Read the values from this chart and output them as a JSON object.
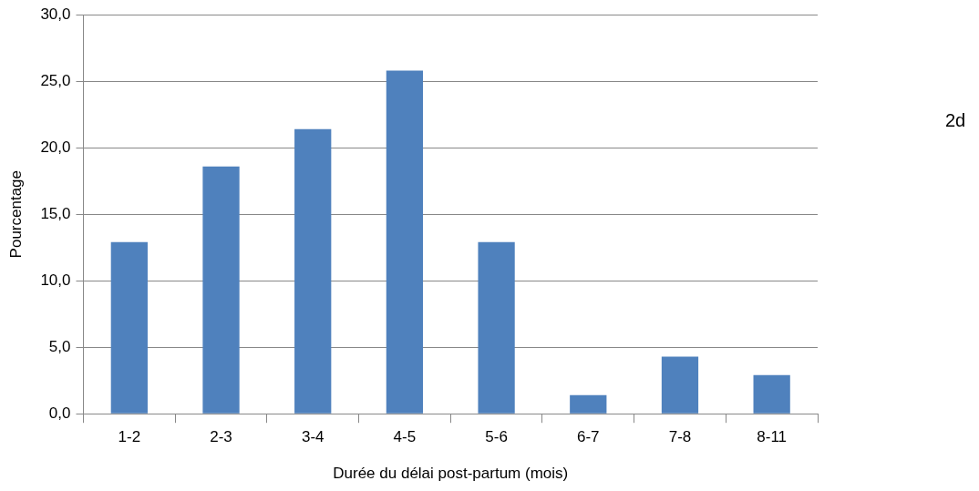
{
  "chart_data": {
    "type": "bar",
    "xlabel": "Durée du délai post-partum (mois)",
    "ylabel": "Pourcentage",
    "categories": [
      "1-2",
      "2-3",
      "3-4",
      "4-5",
      "5-6",
      "6-7",
      "7-8",
      "8-11"
    ],
    "values": [
      12.9,
      18.6,
      21.4,
      25.8,
      12.9,
      1.4,
      4.3,
      2.9
    ],
    "color": "#4f81bd",
    "ylim": [
      0,
      30
    ],
    "yticks": [
      {
        "value": 0,
        "label": "0,0"
      },
      {
        "value": 5,
        "label": "5,0"
      },
      {
        "value": 10,
        "label": "10,0"
      },
      {
        "value": 15,
        "label": "15,0"
      },
      {
        "value": 20,
        "label": "20,0"
      },
      {
        "value": 25,
        "label": "25,0"
      },
      {
        "value": 30,
        "label": "30,0"
      }
    ],
    "grid": "y",
    "legend": false,
    "annotations": [
      "2d"
    ]
  }
}
